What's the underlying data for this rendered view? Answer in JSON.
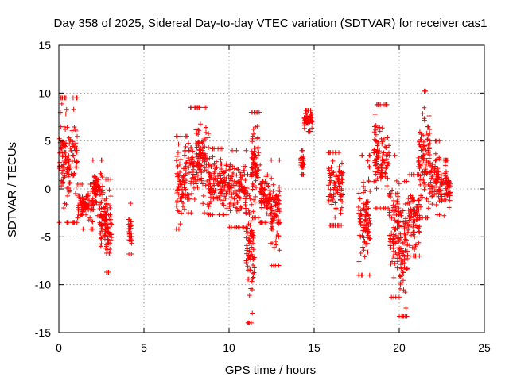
{
  "chart_data": {
    "type": "scatter",
    "title": "Day 358 of 2025, Sidereal Day-to-day VTEC variation (SDTVAR) for receiver cas1",
    "xlabel": "GPS time / hours",
    "ylabel": "SDTVAR / TECUs",
    "xlim": [
      0,
      25
    ],
    "ylim": [
      -15,
      15
    ],
    "x_ticks": [
      0,
      5,
      10,
      15,
      20,
      25
    ],
    "y_ticks": [
      -15,
      -10,
      -5,
      0,
      5,
      10,
      15
    ],
    "grid": true,
    "marker": "+",
    "color": "#ff0000",
    "clusters": [
      {
        "x0": 0.0,
        "x1": 1.1,
        "ymin": -3.5,
        "ymax": 9.5
      },
      {
        "x0": 1.1,
        "x1": 2.0,
        "ymin": -4.2,
        "ymax": 0.5
      },
      {
        "x0": 2.0,
        "x1": 2.6,
        "ymin": -2.8,
        "ymax": 3.0
      },
      {
        "x0": 2.4,
        "x1": 2.8,
        "ymin": -6.0,
        "ymax": -1.0
      },
      {
        "x0": 2.7,
        "x1": 3.1,
        "ymin": -8.7,
        "ymax": 1.0
      },
      {
        "x0": 4.1,
        "x1": 4.3,
        "ymin": -6.8,
        "ymax": -1.5
      },
      {
        "x0": 6.9,
        "x1": 7.6,
        "ymin": -4.2,
        "ymax": 5.5
      },
      {
        "x0": 7.6,
        "x1": 8.8,
        "ymin": -2.5,
        "ymax": 8.5
      },
      {
        "x0": 8.8,
        "x1": 10.0,
        "ymin": -2.7,
        "ymax": 4.2
      },
      {
        "x0": 10.0,
        "x1": 11.0,
        "ymin": -4.0,
        "ymax": 4.0
      },
      {
        "x0": 11.0,
        "x1": 11.5,
        "ymin": -14.0,
        "ymax": 1.5
      },
      {
        "x0": 11.3,
        "x1": 11.8,
        "ymin": -3.0,
        "ymax": 8.0
      },
      {
        "x0": 11.8,
        "x1": 12.4,
        "ymin": -3.5,
        "ymax": 2.5
      },
      {
        "x0": 12.4,
        "x1": 13.0,
        "ymin": -8.0,
        "ymax": 3.0
      },
      {
        "x0": 14.2,
        "x1": 14.4,
        "ymin": 1.5,
        "ymax": 4.0
      },
      {
        "x0": 14.4,
        "x1": 14.9,
        "ymin": 6.0,
        "ymax": 8.2
      },
      {
        "x0": 15.8,
        "x1": 16.7,
        "ymin": -3.8,
        "ymax": 3.8
      },
      {
        "x0": 17.6,
        "x1": 18.3,
        "ymin": -9.0,
        "ymax": 3.5
      },
      {
        "x0": 18.5,
        "x1": 19.4,
        "ymin": -2.0,
        "ymax": 8.8
      },
      {
        "x0": 19.4,
        "x1": 20.0,
        "ymin": -11.3,
        "ymax": 3.5
      },
      {
        "x0": 20.0,
        "x1": 20.5,
        "ymin": -13.3,
        "ymax": 0.8
      },
      {
        "x0": 20.5,
        "x1": 21.2,
        "ymin": -7.0,
        "ymax": 1.5
      },
      {
        "x0": 21.1,
        "x1": 21.8,
        "ymin": -3.0,
        "ymax": 10.2
      },
      {
        "x0": 21.8,
        "x1": 22.4,
        "ymin": -2.7,
        "ymax": 5.0
      },
      {
        "x0": 22.4,
        "x1": 23.0,
        "ymin": -2.8,
        "ymax": 3.0
      }
    ]
  }
}
